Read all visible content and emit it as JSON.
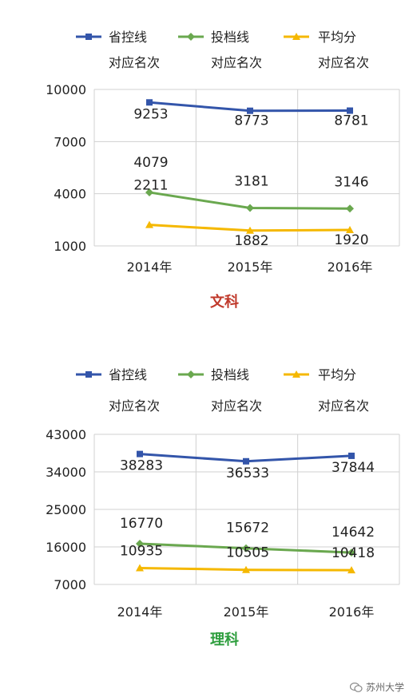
{
  "chart_data": [
    {
      "type": "line",
      "title": "文科",
      "categories": [
        "2014年",
        "2015年",
        "2016年"
      ],
      "yticks": [
        "10000",
        "7000",
        "4000",
        "1000"
      ],
      "ylim": [
        1000,
        10000
      ],
      "series": [
        {
          "name": "省控线",
          "name2": "对应名次",
          "color": "#3355aa",
          "marker": "square",
          "values": [
            9253,
            8773,
            8781
          ]
        },
        {
          "name": "投档线",
          "name2": "对应名次",
          "color": "#6aa84f",
          "marker": "diamond",
          "values": [
            4079,
            3181,
            3146
          ]
        },
        {
          "name": "平均分",
          "name2": "对应名次",
          "color": "#f5b800",
          "marker": "triangle",
          "values": [
            2211,
            1882,
            1920
          ]
        }
      ],
      "grid": true,
      "legend_position": "top",
      "title_color": "#c0392b"
    },
    {
      "type": "line",
      "title": "理科",
      "categories": [
        "2014年",
        "2015年",
        "2016年"
      ],
      "yticks": [
        "43000",
        "34000",
        "25000",
        "16000",
        "7000"
      ],
      "ylim": [
        7000,
        43000
      ],
      "series": [
        {
          "name": "省控线",
          "name2": "对应名次",
          "color": "#3355aa",
          "marker": "square",
          "values": [
            38283,
            36533,
            37844
          ]
        },
        {
          "name": "投档线",
          "name2": "对应名次",
          "color": "#6aa84f",
          "marker": "diamond",
          "values": [
            16770,
            15672,
            14642
          ]
        },
        {
          "name": "平均分",
          "name2": "对应名次",
          "color": "#f5b800",
          "marker": "triangle",
          "values": [
            10935,
            10505,
            10418
          ]
        }
      ],
      "grid": true,
      "legend_position": "top",
      "title_color": "#2e9e3e"
    }
  ],
  "watermark": {
    "text": "苏州大学",
    "icon": "wechat-icon"
  }
}
